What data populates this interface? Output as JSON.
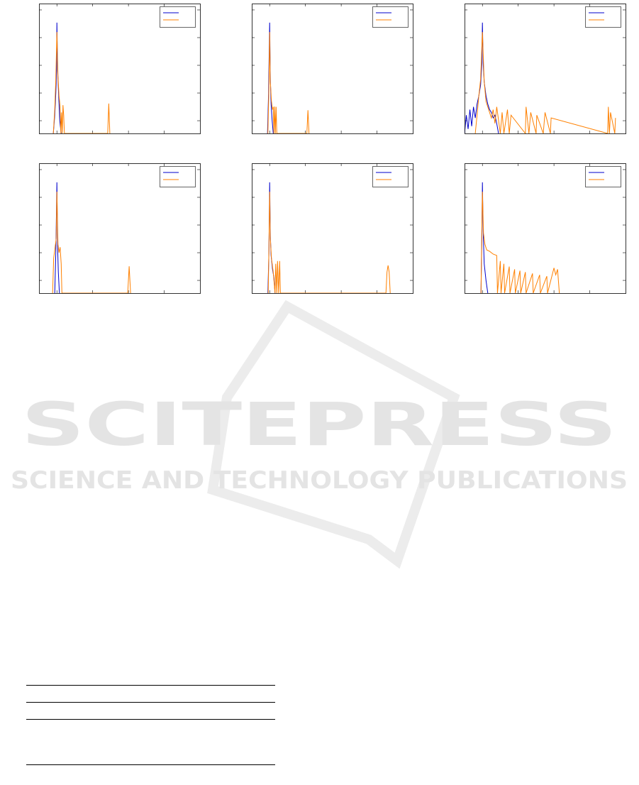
{
  "chart_data": [
    {
      "type": "line",
      "legend": "upper right",
      "grid": false,
      "xlim": [
        -0.5,
        4.0
      ],
      "ylim": [
        -0.46,
        4.23
      ],
      "xticks": [
        0,
        1,
        2,
        3
      ],
      "yticks": [
        0,
        1,
        2,
        3,
        4
      ],
      "series": [
        {
          "color": "#0000cc",
          "x": [
            -0.1,
            -0.06,
            -0.03,
            -0.01,
            0,
            0.02,
            0.05,
            0.08,
            0.12
          ],
          "values": [
            -0.46,
            0.2,
            1.0,
            1.8,
            3.54,
            1.8,
            0.9,
            0.0,
            -0.46
          ]
        },
        {
          "color": "#ff8000",
          "x": [
            -0.1,
            -0.06,
            -0.03,
            0,
            0.03,
            0.06,
            0.09,
            0.11,
            0.13,
            0.15,
            0.17,
            0.19,
            0.21,
            1.42,
            1.45,
            1.48
          ],
          "values": [
            -0.46,
            0.4,
            1.5,
            3.2,
            1.6,
            0.9,
            0.5,
            -0.46,
            0.3,
            -0.46,
            0.56,
            0.2,
            -0.46,
            -0.46,
            0.62,
            -0.46
          ]
        }
      ]
    },
    {
      "type": "line",
      "legend": "upper right",
      "grid": false,
      "xlim": [
        -0.5,
        4.0
      ],
      "ylim": [
        -0.46,
        4.23
      ],
      "xticks": [
        0,
        1,
        2,
        3
      ],
      "yticks": [
        0,
        1,
        2,
        3,
        4
      ],
      "series": [
        {
          "color": "#0000cc",
          "x": [
            -0.06,
            -0.03,
            0,
            0.02,
            0.04,
            0.07,
            0.1
          ],
          "values": [
            -0.46,
            1.0,
            3.54,
            1.5,
            0.6,
            0.0,
            -0.46
          ]
        },
        {
          "color": "#ff8000",
          "x": [
            -0.05,
            -0.02,
            0,
            0.02,
            0.05,
            0.08,
            0.1,
            0.12,
            0.14,
            0.16,
            0.18,
            0.2,
            0.22,
            1.04,
            1.07,
            1.1
          ],
          "values": [
            -0.46,
            1.2,
            3.2,
            1.4,
            0.7,
            0.4,
            0.5,
            -0.46,
            0.51,
            -0.46,
            0.5,
            -0.46,
            -0.46,
            -0.46,
            0.38,
            -0.46
          ]
        }
      ]
    },
    {
      "type": "line",
      "legend": "upper right",
      "grid": false,
      "xlim": [
        -0.5,
        4.0
      ],
      "ylim": [
        -0.46,
        4.23
      ],
      "xticks": [
        0,
        1,
        2,
        3
      ],
      "yticks": [
        0,
        1,
        2,
        3,
        4
      ],
      "series": [
        {
          "color": "#0000cc",
          "x": [
            -0.5,
            -0.45,
            -0.4,
            -0.35,
            -0.3,
            -0.25,
            -0.2,
            -0.15,
            -0.1,
            -0.05,
            -0.02,
            0,
            0.02,
            0.05,
            0.1,
            0.15,
            0.2,
            0.25,
            0.3,
            0.35,
            0.4,
            0.45
          ],
          "values": [
            -0.46,
            0.2,
            -0.3,
            0.4,
            -0.2,
            0.5,
            0.1,
            0.6,
            0.9,
            1.3,
            2.0,
            3.54,
            2.1,
            1.4,
            0.9,
            0.6,
            0.4,
            0.3,
            0.1,
            0.2,
            -0.1,
            -0.46
          ]
        },
        {
          "color": "#ff8000",
          "x": [
            -0.2,
            -0.15,
            -0.1,
            -0.05,
            0,
            0.05,
            0.1,
            0.15,
            0.2,
            0.25,
            0.3,
            0.35,
            0.4,
            0.5,
            0.55,
            0.6,
            0.7,
            0.75,
            0.8,
            1.2,
            1.22,
            1.3,
            1.35,
            1.5,
            1.52,
            1.7,
            1.75,
            1.9,
            1.92,
            3.5,
            3.52,
            3.55,
            3.58,
            3.7,
            3.72
          ],
          "values": [
            -0.46,
            0.2,
            0.9,
            1.5,
            3.2,
            1.4,
            0.7,
            0.5,
            0.3,
            0.1,
            0.4,
            -0.1,
            0.5,
            -0.46,
            0.3,
            -0.46,
            0.4,
            -0.46,
            0.2,
            -0.46,
            0.5,
            -0.46,
            0.3,
            -0.46,
            0.2,
            -0.46,
            0.3,
            -0.46,
            0.1,
            -0.46,
            0.5,
            -0.46,
            0.3,
            -0.46,
            0.1
          ]
        }
      ]
    },
    {
      "type": "line",
      "legend": "upper right",
      "grid": false,
      "xlim": [
        -0.5,
        4.0
      ],
      "ylim": [
        -0.46,
        4.23
      ],
      "xticks": [
        0,
        1,
        2,
        3
      ],
      "yticks": [
        0,
        1,
        2,
        3,
        4
      ],
      "series": [
        {
          "color": "#0000cc",
          "x": [
            -0.06,
            -0.03,
            0,
            0.02,
            0.04,
            0.07
          ],
          "values": [
            -0.46,
            1.0,
            3.54,
            1.2,
            0.3,
            -0.46
          ]
        },
        {
          "color": "#ff8000",
          "x": [
            -0.12,
            -0.09,
            -0.05,
            -0.02,
            0,
            0.03,
            0.06,
            0.09,
            0.12,
            0.14,
            1.98,
            2.02,
            2.06
          ],
          "values": [
            -0.46,
            0.8,
            1.2,
            1.5,
            3.2,
            1.3,
            1.0,
            1.2,
            0.6,
            -0.46,
            -0.46,
            0.51,
            -0.46
          ]
        }
      ]
    },
    {
      "type": "line",
      "legend": "upper right",
      "grid": false,
      "xlim": [
        -0.5,
        4.0
      ],
      "ylim": [
        -0.46,
        4.23
      ],
      "xticks": [
        0,
        1,
        2,
        3
      ],
      "yticks": [
        0,
        1,
        2,
        3,
        4
      ],
      "series": [
        {
          "color": "#0000cc",
          "x": [
            -0.05,
            -0.02,
            0,
            0.02,
            0.04,
            0.08,
            0.12,
            0.15
          ],
          "values": [
            -0.46,
            1.0,
            3.54,
            1.6,
            0.9,
            0.4,
            0.1,
            -0.46
          ]
        },
        {
          "color": "#ff8000",
          "x": [
            -0.04,
            -0.02,
            0,
            0.02,
            0.05,
            0.1,
            0.15,
            0.17,
            0.2,
            0.22,
            0.25,
            0.28,
            0.3,
            0.32,
            3.25,
            3.28,
            3.31,
            3.34,
            3.37
          ],
          "values": [
            -0.46,
            1.2,
            3.2,
            1.5,
            0.8,
            0.3,
            -0.46,
            0.6,
            -0.46,
            0.7,
            -0.46,
            0.7,
            -0.46,
            -0.46,
            -0.46,
            0.3,
            0.54,
            0.3,
            -0.46
          ]
        }
      ]
    },
    {
      "type": "line",
      "legend": "upper right",
      "grid": false,
      "xlim": [
        -0.5,
        4.0
      ],
      "ylim": [
        -0.46,
        4.23
      ],
      "xticks": [
        0,
        1,
        2,
        3
      ],
      "yticks": [
        0,
        1,
        2,
        3,
        4
      ],
      "series": [
        {
          "color": "#0000cc",
          "x": [
            -0.04,
            -0.02,
            0,
            0.02,
            0.05,
            0.1,
            0.15
          ],
          "values": [
            -0.46,
            1.2,
            3.54,
            1.8,
            0.6,
            0.0,
            -0.46
          ]
        },
        {
          "color": "#ff8000",
          "x": [
            -0.04,
            -0.02,
            0,
            0.03,
            0.07,
            0.12,
            0.2,
            0.3,
            0.4,
            0.42,
            0.5,
            0.52,
            0.6,
            0.62,
            0.75,
            0.77,
            0.9,
            0.92,
            1.05,
            1.07,
            1.2,
            1.22,
            1.4,
            1.42,
            1.6,
            1.62,
            1.8,
            1.82,
            2.0,
            2.05,
            2.1,
            2.15
          ],
          "values": [
            -0.46,
            1.5,
            3.2,
            1.7,
            1.3,
            1.1,
            1.05,
            0.95,
            0.9,
            -0.46,
            0.7,
            -0.46,
            0.6,
            -0.46,
            0.5,
            -0.46,
            0.4,
            -0.46,
            0.35,
            -0.46,
            0.3,
            -0.46,
            0.25,
            -0.46,
            0.2,
            -0.46,
            0.15,
            -0.46,
            0.45,
            0.2,
            0.4,
            -0.46
          ]
        }
      ]
    }
  ],
  "watermark": {
    "title": "SCITEPRESS",
    "subtitle": "SCIENCE AND TECHNOLOGY PUBLICATIONS"
  }
}
